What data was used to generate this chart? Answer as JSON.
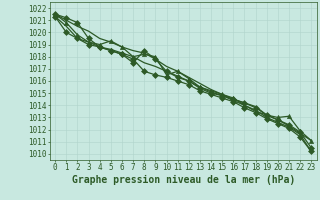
{
  "title": "Graphe pression niveau de la mer (hPa)",
  "bg_color": "#c8e8e0",
  "grid_color": "#b0d4cc",
  "line_color": "#2d5a27",
  "xlim": [
    -0.5,
    23.5
  ],
  "ylim": [
    1009.5,
    1022.5
  ],
  "yticks": [
    1010,
    1011,
    1012,
    1013,
    1014,
    1015,
    1016,
    1017,
    1018,
    1019,
    1020,
    1021,
    1022
  ],
  "xticks": [
    0,
    1,
    2,
    3,
    4,
    5,
    6,
    7,
    8,
    9,
    10,
    11,
    12,
    13,
    14,
    15,
    16,
    17,
    18,
    19,
    20,
    21,
    22,
    23
  ],
  "series": [
    {
      "y": [
        1021.5,
        1021.0,
        1020.5,
        1020.1,
        1019.5,
        1019.2,
        1018.8,
        1018.5,
        1018.3,
        1017.8,
        1017.2,
        1016.8,
        1016.3,
        1015.8,
        1015.3,
        1014.9,
        1014.5,
        1014.2,
        1013.9,
        1013.2,
        1012.8,
        1012.3,
        1011.7,
        1011.1
      ],
      "marker": null,
      "lw": 0.9
    },
    {
      "y": [
        1021.5,
        1020.8,
        1019.8,
        1019.2,
        1019.0,
        1019.3,
        1018.8,
        1018.0,
        1018.2,
        1018.0,
        1016.5,
        1016.8,
        1016.2,
        1015.5,
        1015.2,
        1014.9,
        1014.6,
        1014.0,
        1013.5,
        1013.2,
        1013.0,
        1013.1,
        1011.9,
        1011.1
      ],
      "marker": "^",
      "lw": 0.9
    },
    {
      "y": [
        1021.3,
        1020.0,
        1019.5,
        1019.0,
        1018.8,
        1018.5,
        1018.2,
        1017.8,
        1016.8,
        1016.5,
        1016.3,
        1016.0,
        1015.7,
        1015.2,
        1014.9,
        1014.6,
        1014.3,
        1013.8,
        1013.4,
        1012.9,
        1012.5,
        1012.1,
        1011.4,
        1010.2
      ],
      "marker": "D",
      "lw": 0.9
    },
    {
      "y": [
        1021.3,
        1020.5,
        1019.5,
        1019.2,
        1018.8,
        1018.6,
        1018.3,
        1018.0,
        1017.5,
        1017.2,
        1016.8,
        1016.4,
        1016.0,
        1015.5,
        1015.1,
        1014.8,
        1014.4,
        1014.0,
        1013.6,
        1013.0,
        1012.6,
        1012.2,
        1011.6,
        1010.2
      ],
      "marker": null,
      "lw": 0.9
    },
    {
      "y": [
        1021.5,
        1021.2,
        1020.8,
        1019.5,
        1018.8,
        1018.5,
        1018.2,
        1017.5,
        1018.5,
        1017.8,
        1016.8,
        1016.3,
        1016.0,
        1015.4,
        1015.0,
        1014.8,
        1014.5,
        1014.2,
        1013.8,
        1013.2,
        1012.8,
        1012.4,
        1011.8,
        1010.5
      ],
      "marker": "D",
      "lw": 0.9
    }
  ],
  "marker_size": 3,
  "title_fontsize": 7,
  "tick_fontsize": 5.5
}
